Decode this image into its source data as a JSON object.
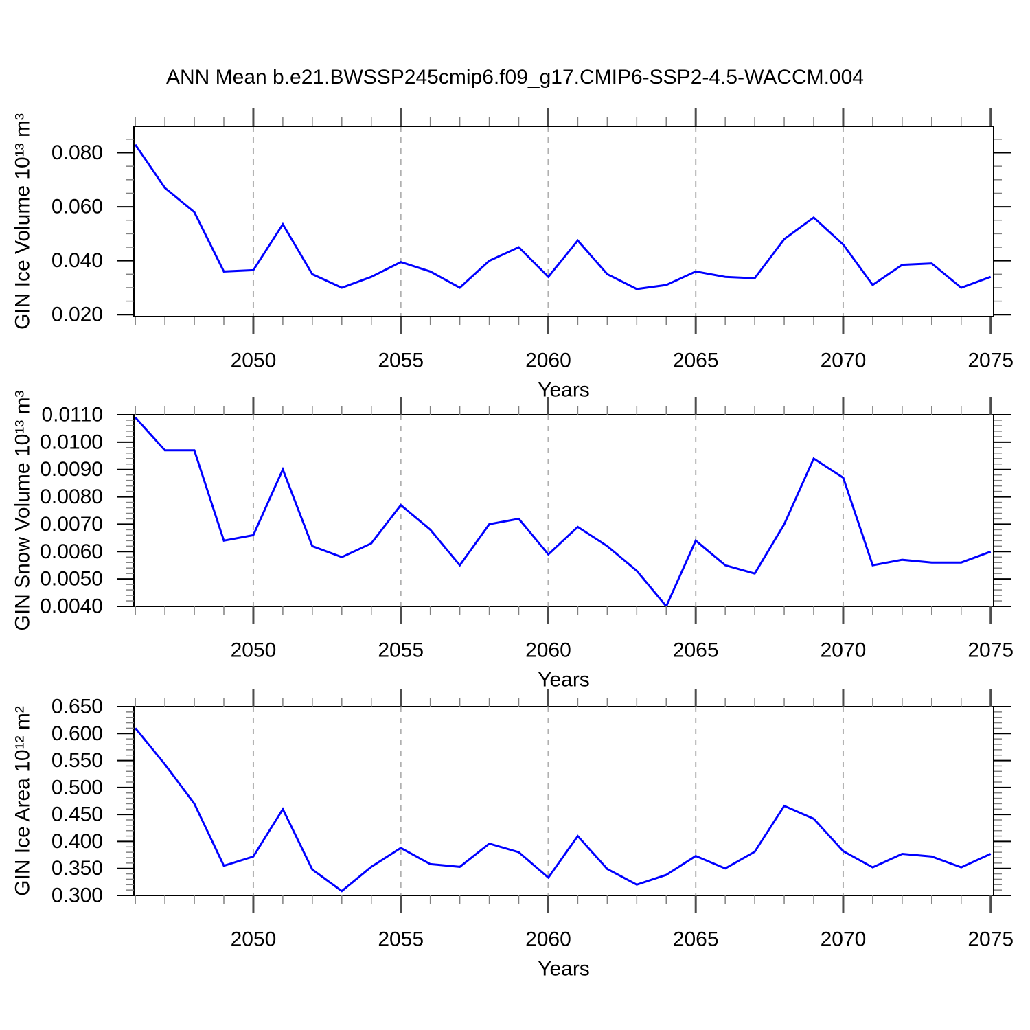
{
  "title": "ANN Mean b.e21.BWSSP245cmip6.f09_g17.CMIP6-SSP2-4.5-WACCM.004",
  "colors": {
    "line": "#0000ff",
    "frame": "#000000",
    "grid_dash": "#b0b0b0",
    "x_major_tick": "#4d4d4d",
    "minor_tick": "#808080",
    "y_major_tick": "#000000",
    "text": "#000000"
  },
  "x_axis": {
    "label": "Years",
    "xlim": [
      2045.95,
      2075.1
    ],
    "major_ticks": [
      2050,
      2055,
      2060,
      2065,
      2070,
      2075
    ],
    "major_tick_labels": [
      "2050",
      "2055",
      "2060",
      "2065",
      "2070",
      "2075"
    ],
    "minor_step": 1,
    "dashed_grid_at": [
      2050,
      2055,
      2060,
      2065,
      2070
    ]
  },
  "chart_data": [
    {
      "type": "line",
      "name": "gin-ice-volume",
      "ylabel": "GIN Ice Volume 10¹³ m³",
      "xlabel": "Years",
      "ylim": [
        0.0193,
        0.0898
      ],
      "y_major_ticks": [
        0.02,
        0.04,
        0.06,
        0.08
      ],
      "y_major_labels": [
        "0.020",
        "0.040",
        "0.060",
        "0.080"
      ],
      "y_minor_step": 0.005,
      "x": [
        2046,
        2047,
        2048,
        2049,
        2050,
        2051,
        2052,
        2053,
        2054,
        2055,
        2056,
        2057,
        2058,
        2059,
        2060,
        2061,
        2062,
        2063,
        2064,
        2065,
        2066,
        2067,
        2068,
        2069,
        2070,
        2071,
        2072,
        2073,
        2074,
        2075
      ],
      "values": [
        0.083,
        0.067,
        0.058,
        0.036,
        0.0365,
        0.0535,
        0.035,
        0.03,
        0.034,
        0.0395,
        0.036,
        0.03,
        0.04,
        0.045,
        0.034,
        0.0475,
        0.035,
        0.0295,
        0.031,
        0.036,
        0.034,
        0.0335,
        0.048,
        0.056,
        0.046,
        0.031,
        0.0385,
        0.039,
        0.03,
        0.034
      ]
    },
    {
      "type": "line",
      "name": "gin-snow-volume",
      "ylabel": "GIN Snow Volume 10¹³ m³",
      "xlabel": "Years",
      "ylim": [
        0.004,
        0.011
      ],
      "y_major_ticks": [
        0.004,
        0.005,
        0.006,
        0.007,
        0.008,
        0.009,
        0.01,
        0.011
      ],
      "y_major_labels": [
        "0.0040",
        "0.0050",
        "0.0060",
        "0.0070",
        "0.0080",
        "0.0090",
        "0.0100",
        "0.0110"
      ],
      "y_minor_step": 0.0002,
      "x": [
        2046,
        2047,
        2048,
        2049,
        2050,
        2051,
        2052,
        2053,
        2054,
        2055,
        2056,
        2057,
        2058,
        2059,
        2060,
        2061,
        2062,
        2063,
        2064,
        2065,
        2066,
        2067,
        2068,
        2069,
        2070,
        2071,
        2072,
        2073,
        2074,
        2075
      ],
      "values": [
        0.0109,
        0.0097,
        0.0097,
        0.0064,
        0.0066,
        0.009,
        0.0062,
        0.0058,
        0.0063,
        0.0077,
        0.0068,
        0.0055,
        0.007,
        0.0072,
        0.0059,
        0.0069,
        0.0062,
        0.0053,
        0.004,
        0.0064,
        0.0055,
        0.0052,
        0.007,
        0.0094,
        0.0087,
        0.0055,
        0.0057,
        0.0056,
        0.0056,
        0.006
      ]
    },
    {
      "type": "line",
      "name": "gin-ice-area",
      "ylabel": "GIN Ice Area 10¹² m²",
      "xlabel": "Years",
      "ylim": [
        0.3,
        0.65
      ],
      "y_major_ticks": [
        0.3,
        0.35,
        0.4,
        0.45,
        0.5,
        0.55,
        0.6,
        0.65
      ],
      "y_major_labels": [
        "0.300",
        "0.350",
        "0.400",
        "0.450",
        "0.500",
        "0.550",
        "0.600",
        "0.650"
      ],
      "y_minor_step": 0.01,
      "x": [
        2046,
        2047,
        2048,
        2049,
        2050,
        2051,
        2052,
        2053,
        2054,
        2055,
        2056,
        2057,
        2058,
        2059,
        2060,
        2061,
        2062,
        2063,
        2064,
        2065,
        2066,
        2067,
        2068,
        2069,
        2070,
        2071,
        2072,
        2073,
        2074,
        2075
      ],
      "values": [
        0.61,
        0.543,
        0.47,
        0.355,
        0.372,
        0.46,
        0.348,
        0.308,
        0.353,
        0.388,
        0.358,
        0.353,
        0.396,
        0.38,
        0.333,
        0.41,
        0.349,
        0.32,
        0.338,
        0.373,
        0.35,
        0.381,
        0.466,
        0.442,
        0.382,
        0.352,
        0.377,
        0.372,
        0.352,
        0.377
      ]
    }
  ]
}
